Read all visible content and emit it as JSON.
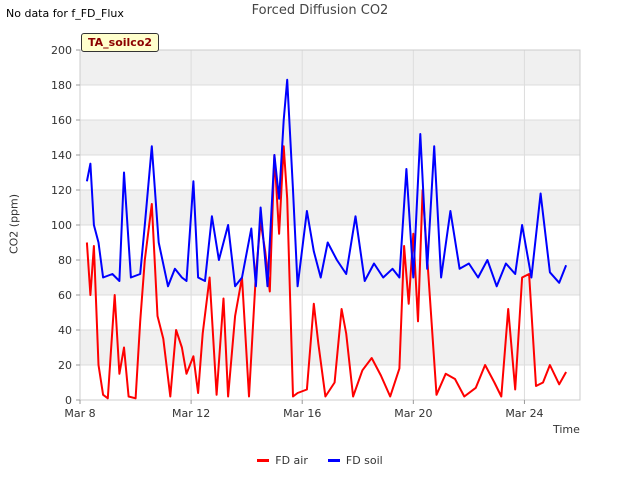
{
  "status_note": "No data for f_FD_Flux",
  "badge": "TA_soilco2",
  "chart_data": {
    "type": "line",
    "title": "Forced Diffusion CO2",
    "xlabel": "Time",
    "ylabel": "CO2 (ppm)",
    "xlim": [
      "2023-03-08",
      "2023-03-26"
    ],
    "ylim": [
      0,
      200
    ],
    "yticks": [
      0,
      20,
      40,
      60,
      80,
      100,
      120,
      140,
      160,
      180,
      200
    ],
    "xticks": [
      {
        "label": "Mar 8",
        "date": "2023-03-08"
      },
      {
        "label": "Mar 12",
        "date": "2023-03-12"
      },
      {
        "label": "Mar 16",
        "date": "2023-03-16"
      },
      {
        "label": "Mar 20",
        "date": "2023-03-20"
      },
      {
        "label": "Mar 24",
        "date": "2023-03-24"
      }
    ],
    "grid": true,
    "legend_position": "bottom",
    "series": [
      {
        "name": "FD air",
        "color": "#ff0000",
        "x": [
          "2023-03-08T06:00",
          "2023-03-08T09:00",
          "2023-03-08T12:00",
          "2023-03-08T16:00",
          "2023-03-08T20:00",
          "2023-03-09T00:00",
          "2023-03-09T06:00",
          "2023-03-09T10:00",
          "2023-03-09T14:00",
          "2023-03-09T18:00",
          "2023-03-10T00:00",
          "2023-03-10T04:00",
          "2023-03-10T08:00",
          "2023-03-10T14:00",
          "2023-03-10T19:00",
          "2023-03-11T00:00",
          "2023-03-11T06:00",
          "2023-03-11T11:00",
          "2023-03-11T16:00",
          "2023-03-11T20:00",
          "2023-03-12T02:00",
          "2023-03-12T06:00",
          "2023-03-12T10:00",
          "2023-03-12T16:00",
          "2023-03-12T22:00",
          "2023-03-13T04:00",
          "2023-03-13T08:00",
          "2023-03-13T14:00",
          "2023-03-13T20:00",
          "2023-03-14T02:00",
          "2023-03-14T08:00",
          "2023-03-14T12:00",
          "2023-03-14T16:00",
          "2023-03-14T20:00",
          "2023-03-15T00:00",
          "2023-03-15T04:00",
          "2023-03-15T08:00",
          "2023-03-15T11:00",
          "2023-03-15T16:00",
          "2023-03-15T20:00",
          "2023-03-16T04:00",
          "2023-03-16T10:00",
          "2023-03-16T14:00",
          "2023-03-16T20:00",
          "2023-03-17T04:00",
          "2023-03-17T10:00",
          "2023-03-17T14:00",
          "2023-03-17T20:00",
          "2023-03-18T04:00",
          "2023-03-18T12:00",
          "2023-03-18T20:00",
          "2023-03-19T04:00",
          "2023-03-19T12:00",
          "2023-03-19T16:00",
          "2023-03-19T20:00",
          "2023-03-20T00:00",
          "2023-03-20T04:00",
          "2023-03-20T08:00",
          "2023-03-20T14:00",
          "2023-03-20T20:00",
          "2023-03-21T04:00",
          "2023-03-21T12:00",
          "2023-03-21T20:00",
          "2023-03-22T06:00",
          "2023-03-22T14:00",
          "2023-03-22T22:00",
          "2023-03-23T04:00",
          "2023-03-23T10:00",
          "2023-03-23T16:00",
          "2023-03-23T22:00",
          "2023-03-24T04:00",
          "2023-03-24T10:00",
          "2023-03-24T16:00",
          "2023-03-24T22:00",
          "2023-03-25T06:00",
          "2023-03-25T12:00"
        ],
        "y": [
          90,
          60,
          88,
          20,
          3,
          1,
          60,
          15,
          30,
          2,
          1,
          45,
          80,
          112,
          48,
          35,
          2,
          40,
          30,
          15,
          25,
          4,
          38,
          70,
          3,
          58,
          2,
          48,
          70,
          2,
          72,
          102,
          85,
          62,
          140,
          95,
          145,
          115,
          2,
          4,
          6,
          55,
          32,
          2,
          10,
          52,
          38,
          2,
          17,
          24,
          14,
          2,
          18,
          88,
          55,
          95,
          45,
          120,
          62,
          3,
          15,
          12,
          2,
          7,
          20,
          10,
          2,
          52,
          6,
          70,
          72,
          8,
          10,
          20,
          9,
          16
        ]
      },
      {
        "name": "FD soil",
        "color": "#0000ff",
        "x": [
          "2023-03-08T06:00",
          "2023-03-08T09:00",
          "2023-03-08T12:00",
          "2023-03-08T16:00",
          "2023-03-08T20:00",
          "2023-03-09T04:00",
          "2023-03-09T10:00",
          "2023-03-09T14:00",
          "2023-03-09T20:00",
          "2023-03-10T04:00",
          "2023-03-10T08:00",
          "2023-03-10T14:00",
          "2023-03-10T20:00",
          "2023-03-11T04:00",
          "2023-03-11T10:00",
          "2023-03-11T16:00",
          "2023-03-11T20:00",
          "2023-03-12T02:00",
          "2023-03-12T06:00",
          "2023-03-12T12:00",
          "2023-03-12T18:00",
          "2023-03-13T00:00",
          "2023-03-13T08:00",
          "2023-03-13T14:00",
          "2023-03-13T20:00",
          "2023-03-14T04:00",
          "2023-03-14T08:00",
          "2023-03-14T12:00",
          "2023-03-14T18:00",
          "2023-03-15T00:00",
          "2023-03-15T04:00",
          "2023-03-15T08:00",
          "2023-03-15T11:00",
          "2023-03-15T16:00",
          "2023-03-15T20:00",
          "2023-03-16T04:00",
          "2023-03-16T10:00",
          "2023-03-16T16:00",
          "2023-03-16T22:00",
          "2023-03-17T06:00",
          "2023-03-17T14:00",
          "2023-03-17T22:00",
          "2023-03-18T06:00",
          "2023-03-18T14:00",
          "2023-03-18T22:00",
          "2023-03-19T06:00",
          "2023-03-19T12:00",
          "2023-03-19T18:00",
          "2023-03-20T00:00",
          "2023-03-20T06:00",
          "2023-03-20T12:00",
          "2023-03-20T18:00",
          "2023-03-21T00:00",
          "2023-03-21T08:00",
          "2023-03-21T16:00",
          "2023-03-22T00:00",
          "2023-03-22T08:00",
          "2023-03-22T16:00",
          "2023-03-23T00:00",
          "2023-03-23T08:00",
          "2023-03-23T16:00",
          "2023-03-23T22:00",
          "2023-03-24T06:00",
          "2023-03-24T14:00",
          "2023-03-24T22:00",
          "2023-03-25T06:00",
          "2023-03-25T12:00"
        ],
        "y": [
          125,
          135,
          100,
          90,
          70,
          72,
          68,
          130,
          70,
          72,
          100,
          145,
          90,
          65,
          75,
          70,
          68,
          125,
          70,
          68,
          105,
          80,
          100,
          65,
          70,
          98,
          65,
          110,
          65,
          140,
          115,
          160,
          183,
          120,
          65,
          108,
          85,
          70,
          90,
          80,
          72,
          105,
          68,
          78,
          70,
          75,
          70,
          132,
          70,
          152,
          75,
          145,
          70,
          108,
          75,
          78,
          70,
          80,
          65,
          78,
          72,
          100,
          70,
          118,
          73,
          67,
          77
        ]
      }
    ]
  }
}
